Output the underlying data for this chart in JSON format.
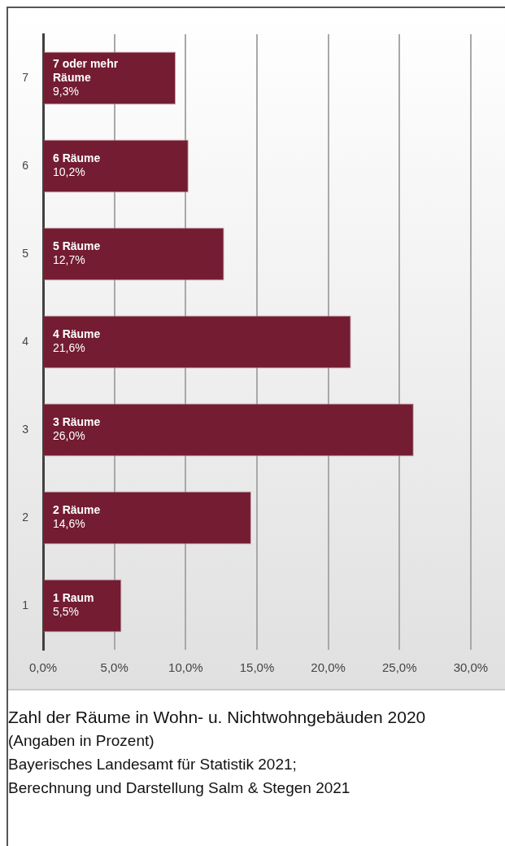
{
  "chart_data": {
    "type": "bar",
    "orientation": "horizontal",
    "title": "Zahl der Räume in Wohn- u. Nichtwohngebäuden 2020",
    "subtitle": "(Angaben in Prozent)",
    "categories": [
      "7",
      "6",
      "5",
      "4",
      "3",
      "2",
      "1"
    ],
    "values": [
      9.3,
      10.2,
      12.7,
      21.6,
      26.0,
      14.6,
      5.5
    ],
    "value_labels": [
      "7 oder mehr Räume 9,3%",
      "6 Räume 10,2%",
      "5 Räume 12,7%",
      "4 Räume 21,6%",
      "3 Räume 26,0%",
      "2 Räume 14,6%",
      "1 Raum 5,5%"
    ],
    "color": "#731c32",
    "xlim": [
      0,
      32.4
    ],
    "xticks": [
      {
        "value": 0,
        "label": "0,0%"
      },
      {
        "value": 5,
        "label": "5,0%"
      },
      {
        "value": 10,
        "label": "10,0%"
      },
      {
        "value": 15,
        "label": "15,0%"
      },
      {
        "value": 20,
        "label": "20,0%"
      },
      {
        "value": 25,
        "label": "25,0%"
      },
      {
        "value": 30,
        "label": "30,0%"
      }
    ],
    "grid": "x",
    "legend": false,
    "annotations": [
      "Bayerisches Landesamt für Statistik 2021;",
      "Berechnung und Darstellung Salm & Stegen 2021"
    ]
  }
}
